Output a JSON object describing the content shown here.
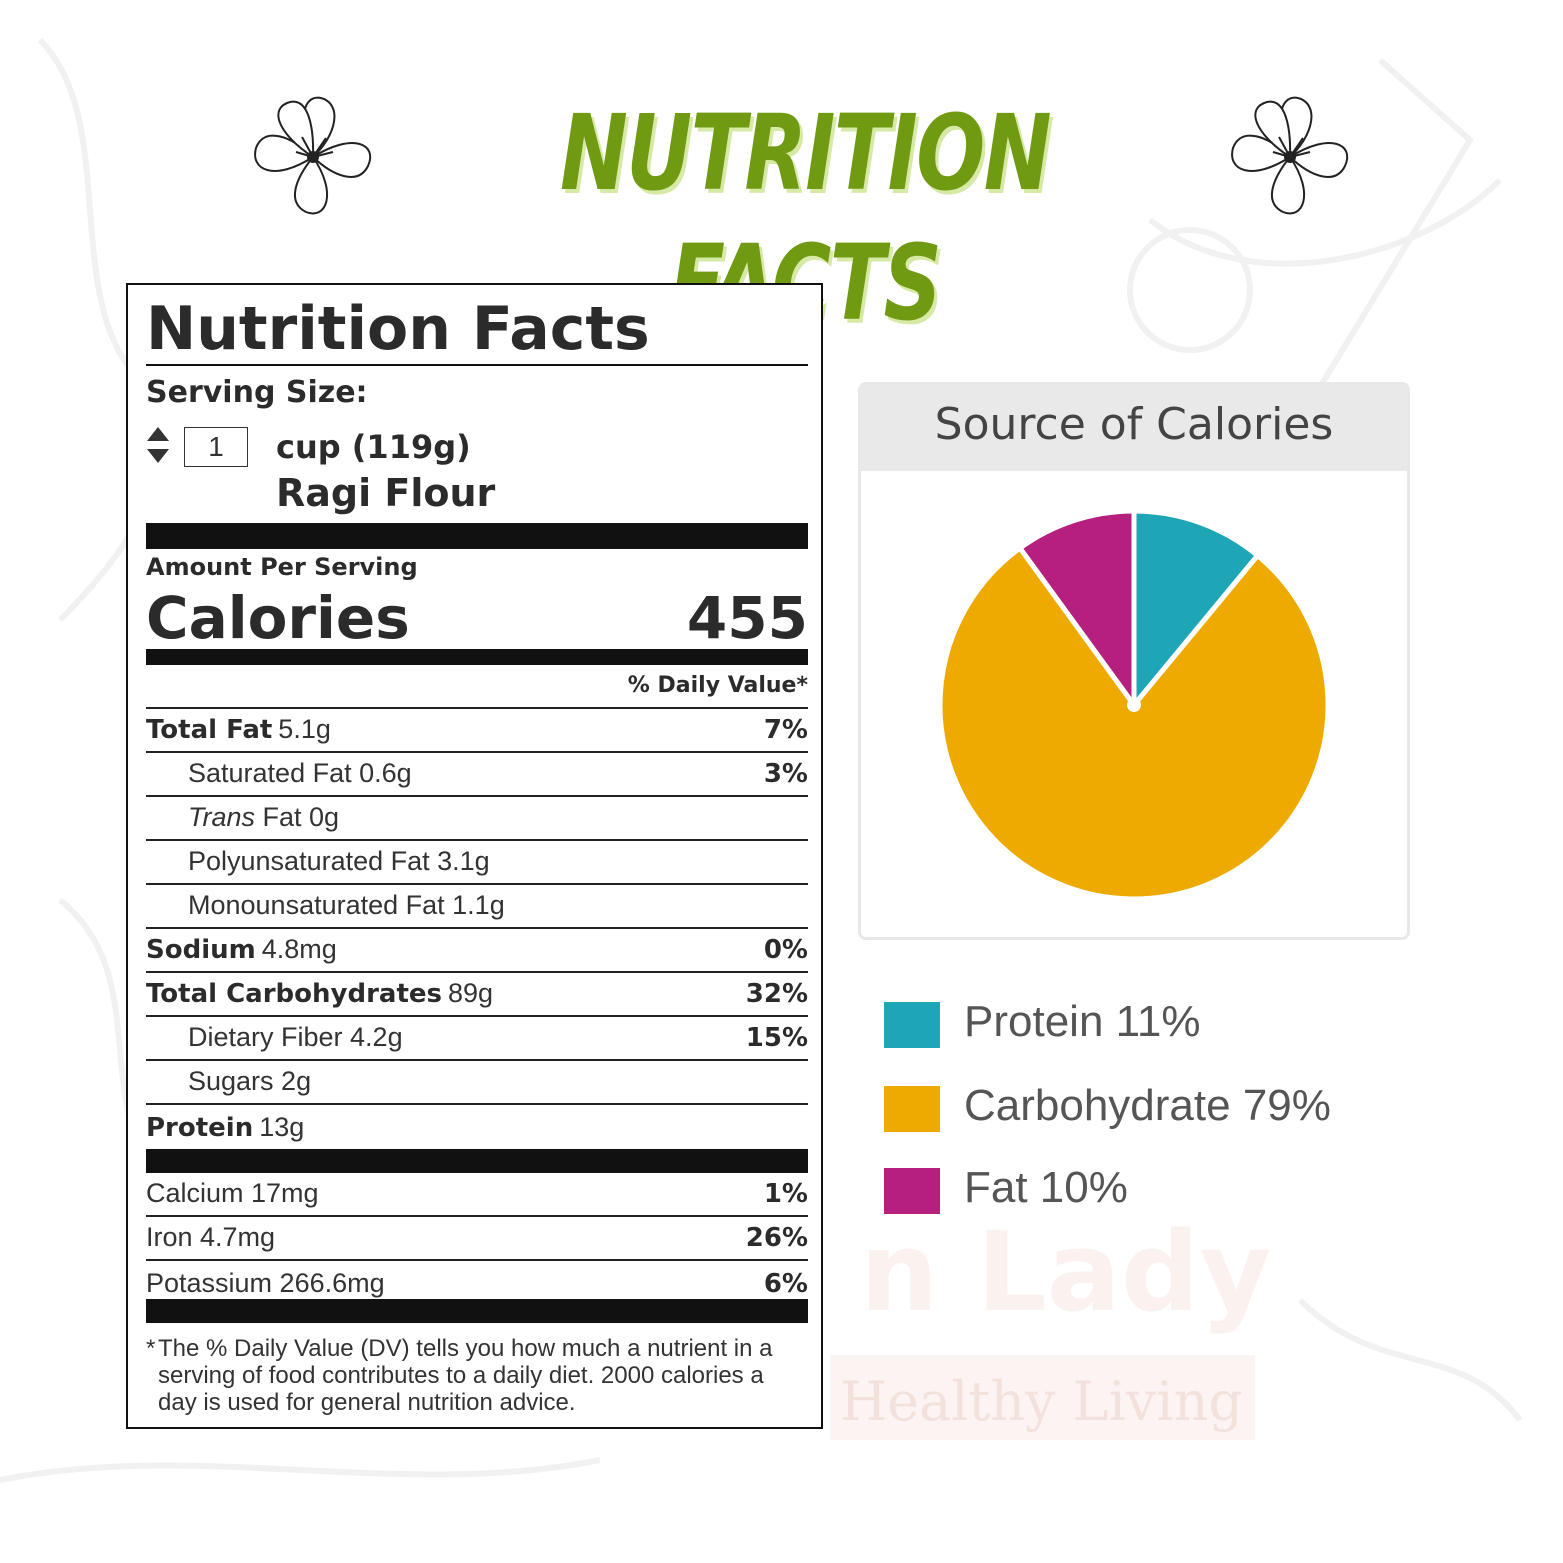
{
  "banner": {
    "title": "NUTRITION FACTS"
  },
  "label": {
    "title": "Nutrition Facts",
    "serving_size_label": "Serving Size:",
    "serving_qty": "1",
    "serving_unit": "cup (119g)",
    "serving_food": "Ragi Flour",
    "amount_per_serving": "Amount Per Serving",
    "calories_label": "Calories",
    "calories_value": "455",
    "daily_value_header": "% Daily Value*",
    "rows": [
      {
        "name": "Total Fat",
        "amount": "5.1g",
        "dv": "7%"
      },
      {
        "name": "Saturated Fat 0.6g",
        "dv": "3%"
      },
      {
        "name_italic": "Trans",
        "name": "Fat 0g"
      },
      {
        "name": "Polyunsaturated Fat 3.1g"
      },
      {
        "name": "Monounsaturated Fat 1.1g"
      },
      {
        "name": "Sodium",
        "amount": "4.8mg",
        "dv": "0%"
      },
      {
        "name": "Total Carbohydrates",
        "amount": "89g",
        "dv": "32%"
      },
      {
        "name": "Dietary Fiber 4.2g",
        "dv": "15%"
      },
      {
        "name": "Sugars 2g"
      },
      {
        "name": "Protein",
        "amount": "13g"
      }
    ],
    "minerals": [
      {
        "name": "Calcium 17mg",
        "dv": "1%"
      },
      {
        "name": "Iron 4.7mg",
        "dv": "26%"
      },
      {
        "name": "Potassium 266.6mg",
        "dv": "6%"
      }
    ],
    "footnote_star": "*",
    "footnote": "The % Daily Value (DV) tells you how much a nutrient in a serving of food contributes to a daily diet. 2000 calories a day is used for general nutrition advice."
  },
  "chart_data": {
    "type": "pie",
    "title": "Source of Calories",
    "slices": [
      {
        "label": "Protein",
        "percent_label": "11%",
        "value": 11,
        "color": "#1fa6b6"
      },
      {
        "label": "Carbohydrate",
        "percent_label": "79%",
        "value": 79,
        "color": "#eeaa00"
      },
      {
        "label": "Fat",
        "percent_label": "10%",
        "value": 10,
        "color": "#b5207e"
      }
    ],
    "legend_position": "bottom"
  },
  "legend": [
    {
      "text": "Protein 11%",
      "color": "#1fa6b6"
    },
    {
      "text": "Carbohydrate 79%",
      "color": "#eeaa00"
    },
    {
      "text": "Fat 10%",
      "color": "#b5207e"
    }
  ],
  "colors": {
    "banner_green": "#6f9a12",
    "banner_shadow": "#d6e9a5"
  }
}
